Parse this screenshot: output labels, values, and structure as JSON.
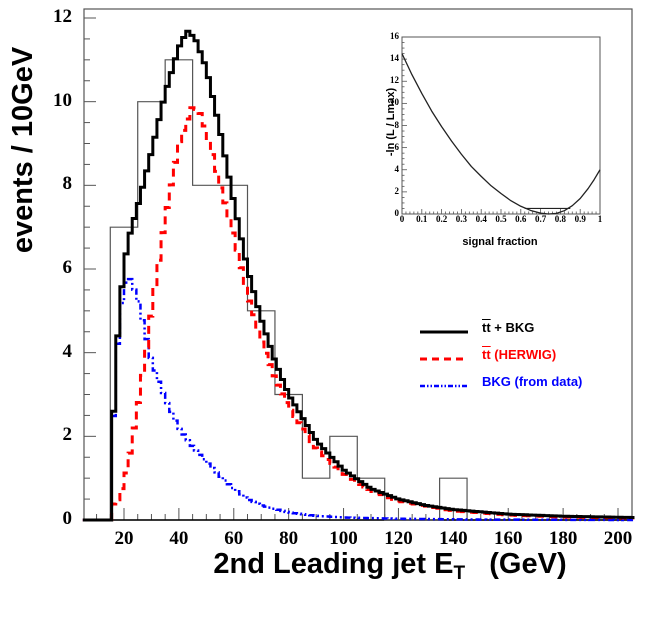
{
  "chart_data": {
    "type": "line",
    "title": "",
    "xlabel": "2nd Leading jet E_T   (GeV)",
    "ylabel": "events / 10GeV",
    "xlim": [
      5,
      205
    ],
    "ylim": [
      0,
      12.2
    ],
    "x_ticks": [
      20,
      40,
      60,
      80,
      100,
      120,
      140,
      160,
      180,
      200
    ],
    "y_ticks": [
      0,
      2,
      4,
      6,
      8,
      10,
      12
    ],
    "grid": false,
    "legend_position": "right-middle",
    "data_histogram": {
      "name": "data",
      "bin_width": 10,
      "bin_edges": [
        15,
        25,
        35,
        45,
        55,
        65,
        75,
        85,
        95,
        105,
        115,
        125,
        135,
        145
      ],
      "counts": [
        7,
        10,
        11,
        8,
        8,
        5,
        3,
        1,
        2,
        1,
        0,
        0,
        1
      ],
      "color": "#555555"
    },
    "series": [
      {
        "name": "tt̄ + BKG",
        "style": "solid",
        "color": "#000000",
        "x": [
          5,
          14.9,
          15,
          16,
          18,
          20,
          22,
          25,
          30,
          35,
          40,
          43,
          46,
          50,
          55,
          60,
          65,
          70,
          75,
          80,
          90,
          100,
          110,
          120,
          130,
          140,
          160,
          180,
          205
        ],
        "values": [
          0,
          0,
          1.0,
          2.3,
          4.7,
          6.1,
          6.8,
          7.5,
          8.8,
          10.2,
          11.3,
          11.7,
          11.5,
          10.8,
          9.3,
          7.6,
          6.0,
          4.8,
          3.8,
          3.0,
          1.9,
          1.2,
          0.75,
          0.5,
          0.35,
          0.25,
          0.14,
          0.09,
          0.06
        ]
      },
      {
        "name": "tt̄ (HERWIG)",
        "style": "dashed",
        "color": "#ff0000",
        "x": [
          5,
          14.9,
          15,
          18,
          20,
          22,
          25,
          28,
          30,
          35,
          40,
          45,
          48,
          52,
          55,
          60,
          65,
          70,
          75,
          80,
          90,
          100,
          110,
          120,
          140,
          160,
          180,
          205
        ],
        "values": [
          0,
          0,
          0.3,
          0.5,
          0.9,
          1.5,
          2.7,
          4.0,
          5.0,
          7.2,
          9.0,
          9.9,
          9.7,
          8.8,
          8.0,
          6.8,
          5.4,
          4.3,
          3.4,
          2.7,
          1.7,
          1.1,
          0.7,
          0.45,
          0.22,
          0.12,
          0.07,
          0.05
        ]
      },
      {
        "name": "BKG (from data)",
        "style": "dash-dot",
        "color": "#0000ff",
        "x": [
          5,
          14.9,
          15,
          16,
          18,
          20,
          22,
          25,
          28,
          30,
          35,
          40,
          45,
          50,
          55,
          60,
          65,
          70,
          80,
          90,
          100,
          120,
          150,
          205
        ],
        "values": [
          0,
          0,
          0.6,
          2.2,
          4.5,
          5.6,
          5.8,
          5.3,
          4.4,
          3.8,
          2.9,
          2.2,
          1.75,
          1.4,
          1.05,
          0.75,
          0.5,
          0.35,
          0.18,
          0.1,
          0.06,
          0.03,
          0.01,
          0
        ]
      }
    ],
    "inset": {
      "type": "line",
      "xlabel": "signal fraction",
      "ylabel": "-ln (L / Lmax)",
      "xlim": [
        0,
        1
      ],
      "ylim": [
        0,
        16
      ],
      "x_ticks": [
        "0",
        "0.1",
        "0.2",
        "0.3",
        "0.4",
        "0.5",
        "0.6",
        "0.7",
        "0.8",
        "0.9",
        "1"
      ],
      "y_ticks": [
        "0",
        "2",
        "4",
        "6",
        "8",
        "10",
        "12",
        "14",
        "16"
      ],
      "curve": {
        "x": [
          0,
          0.05,
          0.1,
          0.15,
          0.2,
          0.25,
          0.3,
          0.35,
          0.4,
          0.45,
          0.5,
          0.55,
          0.6,
          0.65,
          0.7,
          0.74,
          0.78,
          0.82,
          0.86,
          0.9,
          0.94,
          0.97,
          1.0
        ],
        "values": [
          14.5,
          12.6,
          10.9,
          9.3,
          7.9,
          6.6,
          5.4,
          4.3,
          3.4,
          2.55,
          1.85,
          1.2,
          0.7,
          0.32,
          0.08,
          0.0,
          0.06,
          0.3,
          0.75,
          1.4,
          2.3,
          3.1,
          4.0
        ]
      },
      "one_sigma_interval": {
        "y": 0.5,
        "x_low": 0.62,
        "x_high": 0.85
      }
    }
  },
  "axes": {
    "y_label": "events / 10GeV",
    "x_label_main": "2nd Leading jet E",
    "x_label_sub": "T",
    "x_label_unit": "(GeV)",
    "y_tick_labels": [
      "0",
      "2",
      "4",
      "6",
      "8",
      "10",
      "12"
    ],
    "x_tick_labels": [
      "20",
      "40",
      "60",
      "80",
      "100",
      "120",
      "140",
      "160",
      "180",
      "200"
    ]
  },
  "inset_labels": {
    "y_label": "-ln (L / Lmax)",
    "x_label": "signal fraction",
    "y_tick_labels": [
      "0",
      "2",
      "4",
      "6",
      "8",
      "10",
      "12",
      "14",
      "16"
    ],
    "x_tick_labels": [
      "0",
      "0.1",
      "0.2",
      "0.3",
      "0.4",
      "0.5",
      "0.6",
      "0.7",
      "0.8",
      "0.9",
      "1"
    ]
  },
  "legend": {
    "items": [
      {
        "label_tt": "tt",
        "label_rest": " + BKG",
        "color": "#000000"
      },
      {
        "label_tt": "tt",
        "label_rest": " (HERWIG)",
        "color": "#ff0000"
      },
      {
        "label_tt": "BKG",
        "label_rest": "  (from data)",
        "color": "#0000ff"
      }
    ]
  }
}
